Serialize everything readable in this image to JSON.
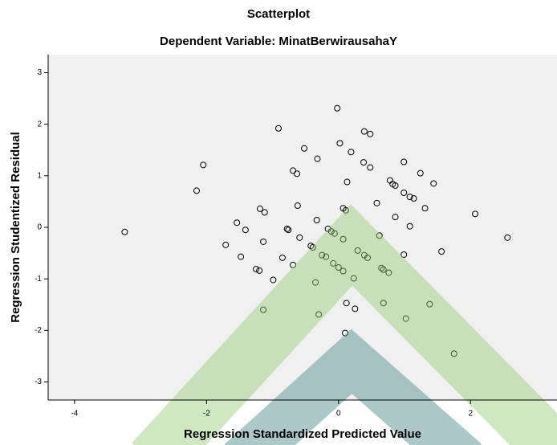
{
  "chart_data": {
    "type": "scatter",
    "title": "Scatterplot",
    "subtitle": "Dependent Variable: MinatBerwirausahaY",
    "x_label": "Regression Standardized Predicted Value",
    "y_label": "Regression Studentized Residual",
    "x": [
      -3.24,
      -2.05,
      -2.15,
      -0.91,
      -0.02,
      -0.52,
      -0.32,
      -0.69,
      -0.63,
      0.02,
      0.19,
      0.39,
      0.48,
      0.38,
      0.48,
      0.13,
      0.99,
      1.24,
      1.44,
      0.78,
      0.82,
      0.86,
      0.99,
      1.08,
      1.14,
      1.31,
      0.58,
      -0.62,
      0.07,
      0.11,
      -1.19,
      -1.12,
      2.07,
      -0.33,
      0.86,
      -1.54,
      -1.41,
      -0.78,
      -0.76,
      -0.16,
      -0.11,
      -0.06,
      1.08,
      0.62,
      -0.59,
      0.07,
      2.56,
      -1.14,
      -0.42,
      -0.39,
      -1.71,
      1.56,
      0.29,
      0.39,
      0.44,
      -0.25,
      -0.19,
      -1.48,
      -0.85,
      0.99,
      -0.69,
      -0.08,
      0.0,
      0.07,
      0.65,
      0.68,
      0.76,
      -1.25,
      -1.2,
      0.23,
      -0.99,
      -0.35,
      0.68,
      1.38,
      0.12,
      0.25,
      -1.14,
      -0.3,
      1.02,
      0.1,
      1.75
    ],
    "values": [
      -0.09,
      1.21,
      0.71,
      1.92,
      2.31,
      1.53,
      1.33,
      1.1,
      1.04,
      1.63,
      1.46,
      1.86,
      1.81,
      1.26,
      1.16,
      0.88,
      1.27,
      1.05,
      0.85,
      0.91,
      0.84,
      0.81,
      0.67,
      0.59,
      0.56,
      0.37,
      0.47,
      0.42,
      0.37,
      0.33,
      0.36,
      0.29,
      0.26,
      0.14,
      0.2,
      0.09,
      -0.05,
      -0.03,
      -0.05,
      -0.03,
      -0.08,
      -0.12,
      0.02,
      -0.16,
      -0.2,
      -0.23,
      -0.2,
      -0.28,
      -0.36,
      -0.39,
      -0.34,
      -0.47,
      -0.45,
      -0.54,
      -0.59,
      -0.54,
      -0.57,
      -0.57,
      -0.59,
      -0.53,
      -0.73,
      -0.7,
      -0.78,
      -0.85,
      -0.79,
      -0.82,
      -0.88,
      -0.81,
      -0.84,
      -0.99,
      -1.02,
      -1.07,
      -1.47,
      -1.49,
      -1.47,
      -1.58,
      -1.6,
      -1.69,
      -1.77,
      -2.05,
      -2.45
    ],
    "xlim": [
      -4.4,
      3.31
    ],
    "ylim": [
      -3.35,
      3.35
    ],
    "xticks": [
      -4,
      -2,
      0,
      2
    ],
    "yticks": [
      -3,
      -2,
      -1,
      0,
      1,
      2,
      3
    ],
    "marker_color": "#000000",
    "background": "#f0f0f0"
  }
}
